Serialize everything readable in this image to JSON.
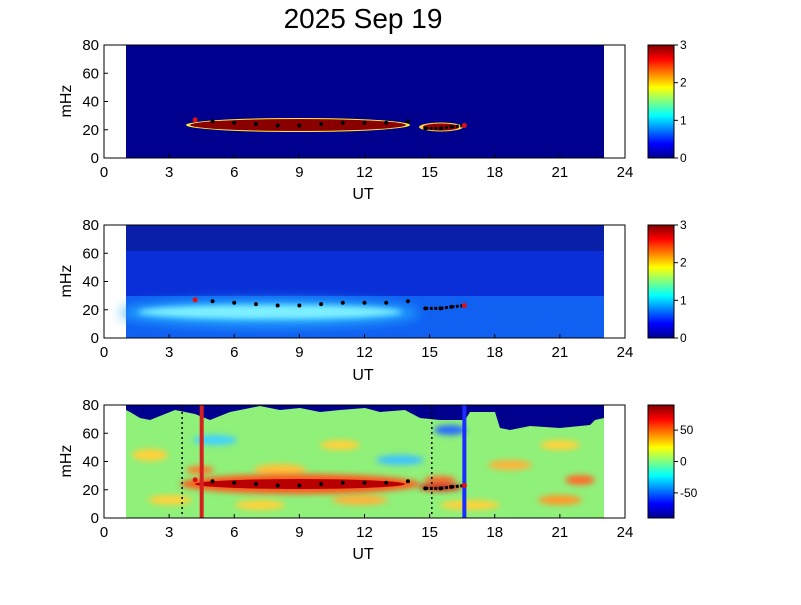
{
  "page_title": "2025 Sep 19",
  "chart_data": [
    {
      "type": "heatmap",
      "xlabel": "UT",
      "ylabel": "mHz",
      "xlim": [
        0,
        24
      ],
      "ylim": [
        0,
        80
      ],
      "x_ticks": [
        "0",
        "3",
        "6",
        "9",
        "12",
        "15",
        "18",
        "21",
        "24"
      ],
      "y_ticks": [
        "0",
        "20",
        "40",
        "60",
        "80"
      ],
      "data_range": [
        1,
        23
      ],
      "colorbar": {
        "range": [
          0,
          3
        ],
        "ticks": [
          "0",
          "1",
          "2",
          "3"
        ]
      },
      "regions": [
        {
          "x_start": 3.8,
          "x_end": 14.1,
          "freq_low": 18,
          "freq_high": 31,
          "level": 3.0
        },
        {
          "x_start": 14.6,
          "x_end": 16.7,
          "freq_low": 17,
          "freq_high": 26,
          "level": 2.3
        }
      ],
      "tracked_frequency": [
        {
          "x": 4.2,
          "y": 27
        },
        {
          "x": 5.0,
          "y": 26
        },
        {
          "x": 6.0,
          "y": 25
        },
        {
          "x": 7.0,
          "y": 24
        },
        {
          "x": 8.0,
          "y": 23
        },
        {
          "x": 9.0,
          "y": 23
        },
        {
          "x": 10.0,
          "y": 24
        },
        {
          "x": 11.0,
          "y": 25
        },
        {
          "x": 12.0,
          "y": 25
        },
        {
          "x": 13.0,
          "y": 25
        },
        {
          "x": 14.0,
          "y": 26
        },
        {
          "x": 14.8,
          "y": 21
        },
        {
          "x": 15.5,
          "y": 21
        },
        {
          "x": 16.0,
          "y": 22
        },
        {
          "x": 16.6,
          "y": 23
        }
      ]
    },
    {
      "type": "heatmap",
      "xlabel": "UT",
      "ylabel": "mHz",
      "xlim": [
        0,
        24
      ],
      "ylim": [
        0,
        80
      ],
      "x_ticks": [
        "0",
        "3",
        "6",
        "9",
        "12",
        "15",
        "18",
        "21",
        "24"
      ],
      "y_ticks": [
        "0",
        "20",
        "40",
        "60",
        "80"
      ],
      "data_range": [
        1,
        23
      ],
      "colorbar": {
        "range": [
          0,
          3
        ],
        "ticks": [
          "0",
          "1",
          "2",
          "3"
        ]
      },
      "regions": [
        {
          "x_start": 3.5,
          "x_end": 14.2,
          "freq_low": 12,
          "freq_high": 28,
          "level": 1.1
        }
      ],
      "tracked_frequency": [
        {
          "x": 4.2,
          "y": 27
        },
        {
          "x": 5.0,
          "y": 26
        },
        {
          "x": 6.0,
          "y": 25
        },
        {
          "x": 7.0,
          "y": 24
        },
        {
          "x": 8.0,
          "y": 23
        },
        {
          "x": 9.0,
          "y": 23
        },
        {
          "x": 10.0,
          "y": 24
        },
        {
          "x": 11.0,
          "y": 25
        },
        {
          "x": 12.0,
          "y": 25
        },
        {
          "x": 13.0,
          "y": 25
        },
        {
          "x": 14.0,
          "y": 26
        },
        {
          "x": 14.8,
          "y": 21
        },
        {
          "x": 15.5,
          "y": 21
        },
        {
          "x": 16.0,
          "y": 22
        },
        {
          "x": 16.6,
          "y": 23
        }
      ]
    },
    {
      "type": "heatmap",
      "xlabel": "UT",
      "ylabel": "mHz",
      "xlim": [
        0,
        24
      ],
      "ylim": [
        0,
        80
      ],
      "x_ticks": [
        "0",
        "3",
        "6",
        "9",
        "12",
        "15",
        "18",
        "21",
        "24"
      ],
      "y_ticks": [
        "0",
        "20",
        "40",
        "60",
        "80"
      ],
      "data_range": [
        1,
        23
      ],
      "colorbar": {
        "range": [
          -90,
          90
        ],
        "ticks": [
          "50",
          "0",
          "-50"
        ]
      },
      "regions": [
        {
          "x_start": 4.0,
          "x_end": 14.2,
          "freq_low": 17,
          "freq_high": 32,
          "level": 75
        }
      ],
      "vertical_markers": [
        {
          "x": 4.5,
          "color": "#d62020"
        },
        {
          "x": 16.6,
          "color": "#1a2cff"
        }
      ],
      "dotted_markers": [
        3.6,
        15.1
      ],
      "tracked_frequency": [
        {
          "x": 4.2,
          "y": 27
        },
        {
          "x": 5.0,
          "y": 26
        },
        {
          "x": 6.0,
          "y": 25
        },
        {
          "x": 7.0,
          "y": 24
        },
        {
          "x": 8.0,
          "y": 23
        },
        {
          "x": 9.0,
          "y": 23
        },
        {
          "x": 10.0,
          "y": 24
        },
        {
          "x": 11.0,
          "y": 25
        },
        {
          "x": 12.0,
          "y": 25
        },
        {
          "x": 13.0,
          "y": 25
        },
        {
          "x": 14.0,
          "y": 26
        },
        {
          "x": 14.8,
          "y": 21
        },
        {
          "x": 15.5,
          "y": 21
        },
        {
          "x": 16.0,
          "y": 22
        },
        {
          "x": 16.6,
          "y": 23
        }
      ]
    }
  ]
}
